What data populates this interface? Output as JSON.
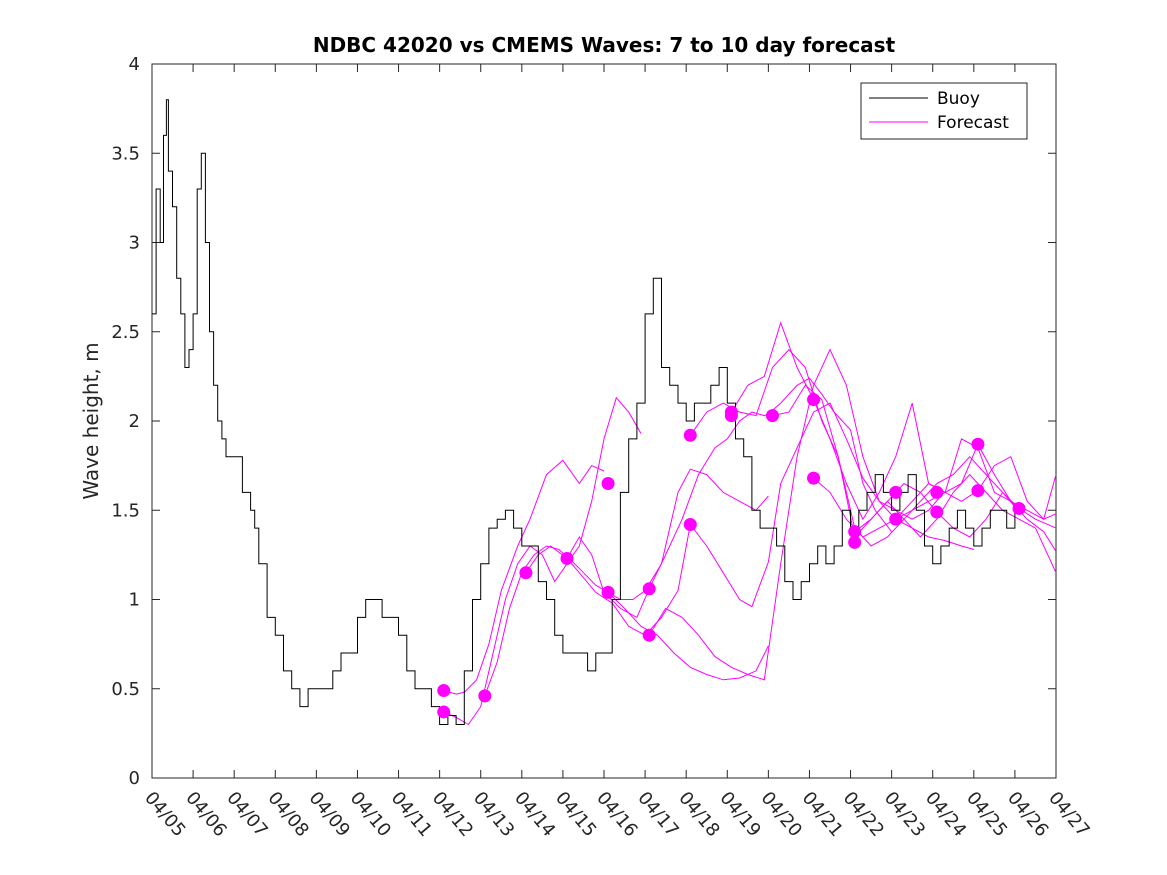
{
  "chart_data": {
    "type": "line",
    "title": "NDBC 42020 vs CMEMS Waves: 7 to 10 day forecast",
    "xlabel": "",
    "ylabel": "Wave height, m",
    "xlim": [
      0,
      22
    ],
    "ylim": [
      0,
      4
    ],
    "yticks": [
      0,
      0.5,
      1,
      1.5,
      2,
      2.5,
      3,
      3.5,
      4
    ],
    "ytick_labels": [
      "0",
      "0.5",
      "1",
      "1.5",
      "2",
      "2.5",
      "3",
      "3.5",
      "4"
    ],
    "xtick_labels": [
      "04/05",
      "04/06",
      "04/07",
      "04/08",
      "04/09",
      "04/10",
      "04/11",
      "04/12",
      "04/13",
      "04/14",
      "04/15",
      "04/16",
      "04/17",
      "04/18",
      "04/19",
      "04/20",
      "04/21",
      "04/22",
      "04/23",
      "04/24",
      "04/25",
      "04/26",
      "04/27"
    ],
    "x_units": "days since 04/05",
    "legend": {
      "position": "top-right",
      "entries": [
        "Buoy",
        "Forecast"
      ]
    },
    "colors": {
      "buoy": "#000000",
      "forecast": "#ff00ff"
    },
    "series": [
      {
        "name": "Buoy",
        "color": "#000000",
        "x": [
          0.0,
          0.1,
          0.2,
          0.28,
          0.35,
          0.4,
          0.5,
          0.6,
          0.7,
          0.8,
          0.9,
          1.0,
          1.1,
          1.2,
          1.3,
          1.4,
          1.5,
          1.6,
          1.7,
          1.8,
          1.9,
          2.0,
          2.2,
          2.4,
          2.5,
          2.6,
          2.8,
          3.0,
          3.2,
          3.4,
          3.6,
          3.8,
          4.0,
          4.2,
          4.4,
          4.6,
          4.8,
          5.0,
          5.2,
          5.4,
          5.6,
          5.8,
          6.0,
          6.2,
          6.4,
          6.6,
          6.8,
          7.0,
          7.2,
          7.4,
          7.6,
          7.8,
          8.0,
          8.2,
          8.4,
          8.6,
          8.8,
          9.0,
          9.2,
          9.4,
          9.6,
          9.8,
          10.0,
          10.2,
          10.4,
          10.6,
          10.8,
          11.0,
          11.2,
          11.4,
          11.6,
          11.8,
          12.0,
          12.2,
          12.4,
          12.6,
          12.8,
          13.0,
          13.2,
          13.4,
          13.6,
          13.8,
          14.0,
          14.2,
          14.4,
          14.6,
          14.8,
          15.0,
          15.2,
          15.4,
          15.6,
          15.8,
          16.0,
          16.2,
          16.4,
          16.6,
          16.8,
          17.0,
          17.2,
          17.4,
          17.6,
          17.8,
          18.0,
          18.2,
          18.4,
          18.6,
          18.8,
          19.0,
          19.2,
          19.4,
          19.6,
          19.8,
          20.0,
          20.2,
          20.4,
          20.6,
          20.8,
          21.0
        ],
        "y": [
          2.6,
          3.3,
          3.0,
          3.6,
          3.8,
          3.4,
          3.2,
          2.8,
          2.6,
          2.3,
          2.4,
          2.6,
          3.3,
          3.5,
          3.0,
          2.5,
          2.2,
          2.0,
          1.9,
          1.8,
          1.8,
          1.8,
          1.6,
          1.5,
          1.4,
          1.2,
          0.9,
          0.8,
          0.6,
          0.5,
          0.4,
          0.5,
          0.5,
          0.5,
          0.6,
          0.7,
          0.7,
          0.9,
          1.0,
          1.0,
          0.9,
          0.9,
          0.8,
          0.6,
          0.5,
          0.5,
          0.4,
          0.3,
          0.35,
          0.3,
          0.6,
          1.0,
          1.2,
          1.4,
          1.45,
          1.5,
          1.4,
          1.3,
          1.3,
          1.1,
          1.0,
          0.8,
          0.7,
          0.7,
          0.7,
          0.6,
          0.7,
          0.7,
          1.0,
          1.6,
          1.9,
          2.1,
          2.6,
          2.8,
          2.3,
          2.2,
          2.1,
          2.0,
          2.1,
          2.1,
          2.2,
          2.3,
          2.1,
          1.9,
          1.8,
          1.5,
          1.4,
          1.4,
          1.3,
          1.1,
          1.0,
          1.1,
          1.2,
          1.3,
          1.2,
          1.3,
          1.5,
          1.4,
          1.5,
          1.6,
          1.7,
          1.6,
          1.5,
          1.6,
          1.7,
          1.5,
          1.3,
          1.2,
          1.3,
          1.4,
          1.5,
          1.4,
          1.3,
          1.4,
          1.5,
          1.5,
          1.4,
          1.5
        ]
      },
      {
        "name": "Forecast",
        "color": "#ff00ff",
        "runs": [
          {
            "x": [
              7.1,
              7.4,
              7.6,
              7.9,
              8.2,
              8.5,
              8.9,
              9.2,
              9.6,
              10.0,
              10.4,
              10.7,
              11.0
            ],
            "y": [
              0.49,
              0.47,
              0.48,
              0.55,
              0.75,
              1.05,
              1.3,
              1.45,
              1.7,
              1.78,
              1.65,
              1.75,
              1.72
            ]
          },
          {
            "x": [
              7.1,
              7.4,
              7.7,
              8.0,
              8.3,
              8.6,
              8.9,
              9.2,
              9.5,
              9.8,
              10.1,
              10.4,
              10.7,
              11.0,
              11.3,
              11.6,
              11.9
            ],
            "y": [
              0.37,
              0.34,
              0.3,
              0.4,
              0.7,
              1.0,
              1.2,
              1.3,
              1.25,
              1.1,
              1.2,
              1.3,
              1.55,
              1.9,
              2.13,
              2.05,
              1.93
            ]
          },
          {
            "x": [
              8.1,
              8.4,
              8.7,
              9.0,
              9.3,
              9.6,
              9.9,
              10.2,
              10.5,
              10.8,
              11.1,
              11.4,
              11.7,
              12.0,
              12.4,
              12.8,
              13.1,
              13.5,
              13.9,
              14.3,
              14.7,
              15.0
            ],
            "y": [
              0.46,
              0.65,
              0.95,
              1.15,
              1.25,
              1.3,
              1.28,
              1.22,
              1.15,
              1.08,
              1.04,
              1.0,
              1.0,
              1.05,
              1.2,
              1.6,
              1.73,
              1.7,
              1.6,
              1.55,
              1.5,
              1.58
            ]
          },
          {
            "x": [
              9.1,
              9.4,
              9.7,
              10.1,
              10.4,
              10.7,
              11.0,
              11.4,
              11.8,
              12.1,
              12.5,
              12.9,
              13.3,
              13.7,
              14.0,
              14.3,
              14.6,
              14.9,
              15.0,
              15.3,
              15.7,
              16.0,
              16.3,
              16.6,
              17.0,
              17.3,
              17.6,
              18.0
            ],
            "y": [
              1.15,
              1.25,
              1.3,
              1.23,
              1.35,
              1.25,
              1.04,
              0.95,
              0.9,
              1.06,
              1.25,
              1.45,
              1.7,
              1.85,
              1.9,
              2.0,
              2.05,
              2.03,
              2.04,
              2.1,
              2.2,
              2.24,
              2.15,
              2.05,
              1.95,
              1.65,
              1.5,
              1.38
            ]
          },
          {
            "x": [
              10.1,
              10.4,
              10.8,
              11.2,
              11.6,
              12.0,
              12.4,
              12.8,
              13.1,
              13.5,
              13.9,
              14.3,
              14.6,
              15.0,
              15.3,
              15.7,
              16.1,
              16.5,
              16.9,
              17.3,
              17.7,
              18.1,
              18.5,
              18.9,
              19.2
            ],
            "y": [
              1.23,
              1.15,
              1.04,
              0.98,
              0.85,
              0.8,
              0.9,
              1.05,
              1.42,
              1.3,
              1.15,
              1.0,
              0.96,
              1.21,
              1.65,
              1.85,
              2.05,
              2.1,
              1.9,
              1.68,
              1.55,
              1.5,
              1.45,
              1.5,
              1.58
            ]
          },
          {
            "x": [
              11.1,
              11.5,
              11.9,
              12.3,
              12.7,
              13.1,
              13.5,
              13.9,
              14.3,
              14.7,
              15.0
            ],
            "y": [
              1.04,
              0.95,
              0.85,
              0.8,
              0.7,
              0.62,
              0.58,
              0.55,
              0.56,
              0.6,
              0.74
            ]
          },
          {
            "x": [
              12.1,
              12.5,
              12.9,
              13.3,
              13.7,
              14.1,
              14.5,
              14.9,
              15.3,
              15.7,
              16.1,
              16.5,
              16.9,
              17.3,
              17.7,
              18.1,
              18.5,
              18.9,
              19.3,
              19.7,
              20.0
            ],
            "y": [
              0.8,
              0.95,
              0.9,
              0.8,
              0.68,
              0.62,
              0.58,
              0.55,
              1.2,
              1.8,
              2.2,
              2.4,
              2.2,
              1.8,
              1.55,
              1.45,
              1.4,
              1.35,
              1.33,
              1.3,
              1.28
            ]
          },
          {
            "x": [
              13.1,
              13.5,
              13.9,
              14.3,
              14.7,
              15.1,
              15.5,
              15.9,
              16.3,
              16.7,
              17.1,
              17.5,
              17.9,
              18.3,
              18.7,
              19.1,
              19.5,
              19.9,
              20.3,
              20.7,
              21.0
            ],
            "y": [
              1.92,
              2.05,
              2.1,
              2.05,
              2.03,
              2.3,
              2.4,
              2.3,
              2.0,
              1.8,
              1.4,
              1.3,
              1.35,
              1.45,
              1.55,
              1.65,
              1.7,
              1.8,
              1.7,
              1.6,
              1.52
            ]
          },
          {
            "x": [
              14.1,
              14.5,
              14.9,
              15.3,
              15.7,
              16.1,
              16.5,
              16.9,
              17.3,
              17.7,
              18.1,
              18.5,
              18.9,
              19.3,
              19.7,
              20.1,
              20.5,
              20.9,
              21.3,
              21.7,
              22.0
            ],
            "y": [
              2.05,
              2.2,
              2.25,
              2.55,
              2.3,
              2.12,
              1.9,
              1.65,
              1.45,
              1.6,
              1.8,
              2.1,
              1.65,
              1.6,
              1.9,
              1.85,
              1.6,
              1.55,
              1.5,
              1.45,
              1.48
            ]
          },
          {
            "x": [
              15.1,
              15.5,
              15.9,
              16.3,
              16.7,
              17.1,
              17.5,
              17.9,
              18.3,
              18.7,
              19.1,
              19.5,
              19.9,
              20.3,
              20.7,
              21.1,
              21.5,
              22.0
            ],
            "y": [
              2.03,
              2.05,
              2.2,
              2.12,
              1.8,
              1.35,
              1.45,
              1.55,
              1.45,
              1.35,
              1.45,
              1.6,
              1.7,
              1.6,
              1.5,
              1.45,
              1.4,
              1.15
            ]
          },
          {
            "x": [
              16.1,
              16.5,
              16.9,
              17.3,
              17.7,
              18.1,
              18.5,
              18.9,
              19.3,
              19.7,
              20.1,
              20.5,
              20.9,
              21.3,
              21.7,
              22.0
            ],
            "y": [
              1.68,
              1.6,
              1.45,
              1.35,
              1.4,
              1.45,
              1.55,
              1.65,
              1.6,
              1.55,
              1.61,
              1.75,
              1.8,
              1.55,
              1.45,
              1.7
            ]
          },
          {
            "x": [
              17.1,
              17.5,
              17.9,
              18.3,
              18.7,
              19.1,
              19.5,
              19.9,
              20.3,
              20.7,
              21.1,
              21.5,
              22.0
            ],
            "y": [
              1.38,
              1.45,
              1.55,
              1.65,
              1.6,
              1.49,
              1.4,
              1.35,
              1.45,
              1.6,
              1.51,
              1.45,
              1.4
            ]
          },
          {
            "x": [
              18.1,
              18.5,
              18.9,
              19.3,
              19.7,
              20.1,
              20.5,
              20.9,
              21.3,
              21.7,
              22.0
            ],
            "y": [
              1.45,
              1.5,
              1.55,
              1.6,
              1.65,
              1.87,
              1.7,
              1.55,
              1.45,
              1.38,
              1.27
            ]
          }
        ],
        "markers": [
          {
            "x": 7.1,
            "y": 0.49
          },
          {
            "x": 7.1,
            "y": 0.37
          },
          {
            "x": 8.1,
            "y": 0.46
          },
          {
            "x": 9.1,
            "y": 1.15
          },
          {
            "x": 10.1,
            "y": 1.23
          },
          {
            "x": 11.1,
            "y": 1.65
          },
          {
            "x": 11.1,
            "y": 1.04
          },
          {
            "x": 12.1,
            "y": 1.06
          },
          {
            "x": 12.1,
            "y": 0.8
          },
          {
            "x": 13.1,
            "y": 1.92
          },
          {
            "x": 13.1,
            "y": 1.42
          },
          {
            "x": 14.1,
            "y": 2.05
          },
          {
            "x": 14.1,
            "y": 2.03
          },
          {
            "x": 15.1,
            "y": 2.03
          },
          {
            "x": 16.1,
            "y": 2.12
          },
          {
            "x": 16.1,
            "y": 1.68
          },
          {
            "x": 17.1,
            "y": 1.38
          },
          {
            "x": 17.1,
            "y": 1.32
          },
          {
            "x": 18.1,
            "y": 1.6
          },
          {
            "x": 18.1,
            "y": 1.45
          },
          {
            "x": 19.1,
            "y": 1.6
          },
          {
            "x": 19.1,
            "y": 1.49
          },
          {
            "x": 20.1,
            "y": 1.87
          },
          {
            "x": 20.1,
            "y": 1.61
          },
          {
            "x": 21.1,
            "y": 1.51
          }
        ]
      }
    ]
  }
}
